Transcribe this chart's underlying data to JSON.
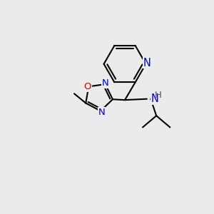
{
  "background_color": "#ebebeb",
  "bond_color": "#000000",
  "bond_width": 1.5,
  "atom_colors": {
    "N": "#0000cc",
    "O": "#cc0000",
    "H": "#555555",
    "C": "#000000"
  },
  "font_size": 9.5,
  "fig_size": [
    3.0,
    3.0
  ],
  "dpi": 100
}
